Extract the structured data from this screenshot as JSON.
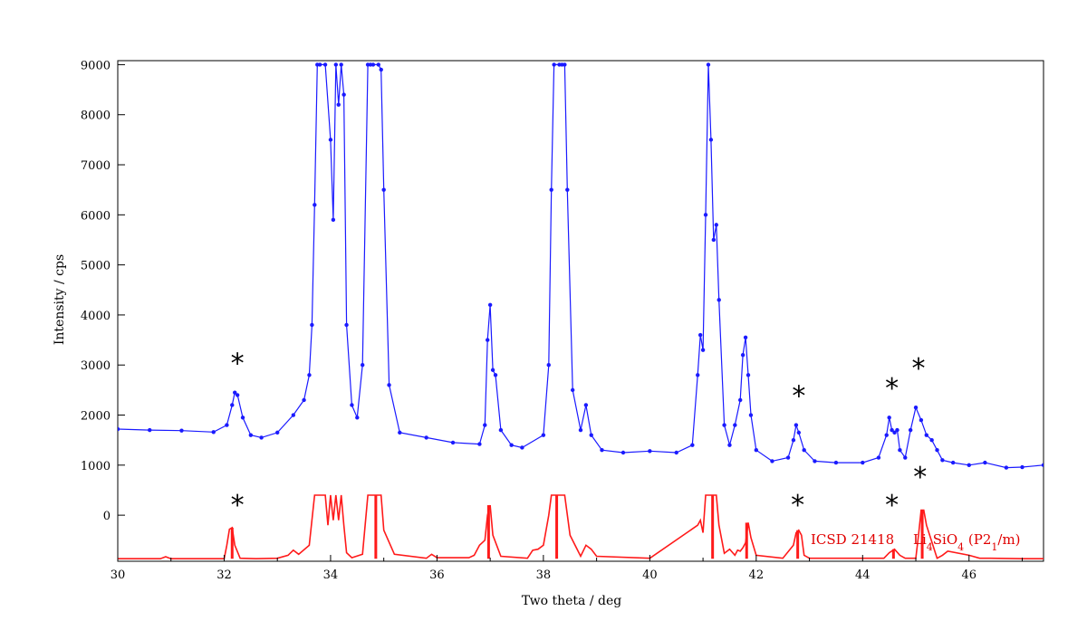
{
  "chart_data": {
    "type": "line",
    "xlabel": "Two theta / deg",
    "ylabel": "Intensity / cps",
    "xlim": [
      30,
      47.4
    ],
    "ylim": [
      -920,
      9080
    ],
    "x_ticks": [
      30,
      32,
      34,
      36,
      38,
      40,
      42,
      44,
      46
    ],
    "y_ticks": [
      0,
      1000,
      2000,
      3000,
      4000,
      5000,
      6000,
      7000,
      8000,
      9000
    ],
    "grid": false,
    "series": [
      {
        "color": "#1a1aff",
        "markers": true,
        "x": [
          30.0,
          30.6,
          31.2,
          31.8,
          32.05,
          32.15,
          32.2,
          32.25,
          32.35,
          32.5,
          32.7,
          33.0,
          33.3,
          33.5,
          33.6,
          33.65,
          33.7,
          33.75,
          33.8,
          33.9,
          34.0,
          34.05,
          34.1,
          34.15,
          34.2,
          34.25,
          34.3,
          34.4,
          34.5,
          34.6,
          34.7,
          34.75,
          34.8,
          34.9,
          34.95,
          35.0,
          35.1,
          35.3,
          35.8,
          36.3,
          36.8,
          36.9,
          36.95,
          37.0,
          37.05,
          37.1,
          37.2,
          37.4,
          37.6,
          38.0,
          38.1,
          38.15,
          38.2,
          38.3,
          38.35,
          38.4,
          38.45,
          38.55,
          38.7,
          38.8,
          38.9,
          39.1,
          39.5,
          40.0,
          40.5,
          40.8,
          40.9,
          40.95,
          41.0,
          41.05,
          41.1,
          41.15,
          41.2,
          41.25,
          41.3,
          41.4,
          41.5,
          41.6,
          41.7,
          41.75,
          41.8,
          41.85,
          41.9,
          42.0,
          42.3,
          42.6,
          42.7,
          42.75,
          42.8,
          42.9,
          43.1,
          43.5,
          44.0,
          44.3,
          44.45,
          44.5,
          44.55,
          44.6,
          44.65,
          44.7,
          44.8,
          44.9,
          45.0,
          45.1,
          45.2,
          45.3,
          45.4,
          45.5,
          45.7,
          46.0,
          46.3,
          46.7,
          47.0,
          47.4
        ],
        "y": [
          1720,
          1700,
          1690,
          1660,
          1800,
          2200,
          2450,
          2400,
          1950,
          1600,
          1550,
          1650,
          2000,
          2300,
          2800,
          3800,
          6200,
          9000,
          9000,
          9000,
          7500,
          5900,
          9000,
          8200,
          9000,
          8400,
          3800,
          2200,
          1950,
          3000,
          9000,
          9000,
          9000,
          9000,
          8900,
          6500,
          2600,
          1650,
          1550,
          1450,
          1420,
          1800,
          3500,
          4200,
          2900,
          2800,
          1700,
          1400,
          1350,
          1600,
          3000,
          6500,
          9000,
          9000,
          9000,
          9000,
          6500,
          2500,
          1700,
          2200,
          1600,
          1300,
          1250,
          1280,
          1250,
          1400,
          2800,
          3600,
          3300,
          6000,
          9000,
          7500,
          5500,
          5800,
          4300,
          1800,
          1400,
          1800,
          2300,
          3200,
          3550,
          2800,
          2000,
          1300,
          1080,
          1150,
          1500,
          1800,
          1650,
          1300,
          1080,
          1050,
          1050,
          1150,
          1600,
          1950,
          1700,
          1650,
          1700,
          1300,
          1150,
          1700,
          2150,
          1900,
          1600,
          1500,
          1300,
          1100,
          1050,
          1000,
          1050,
          950,
          960,
          1000
        ]
      },
      {
        "color": "#ff1a1a",
        "markers": false,
        "x": [
          30.0,
          30.8,
          30.9,
          31.0,
          31.5,
          32.0,
          32.05,
          32.1,
          32.15,
          32.2,
          32.3,
          32.6,
          33.0,
          33.2,
          33.3,
          33.4,
          33.6,
          33.7,
          33.8,
          33.9,
          33.95,
          34.0,
          34.05,
          34.1,
          34.15,
          34.2,
          34.25,
          34.3,
          34.4,
          34.6,
          34.7,
          34.75,
          34.8,
          34.9,
          34.95,
          35.0,
          35.2,
          35.8,
          35.9,
          36.0,
          36.6,
          36.7,
          36.8,
          36.9,
          36.95,
          37.0,
          37.05,
          37.2,
          37.7,
          37.8,
          37.9,
          38.0,
          38.1,
          38.15,
          38.2,
          38.3,
          38.35,
          38.4,
          38.5,
          38.7,
          38.8,
          38.9,
          39.0,
          40.0,
          40.9,
          40.95,
          41.0,
          41.05,
          41.1,
          41.15,
          41.2,
          41.25,
          41.3,
          41.4,
          41.5,
          41.6,
          41.65,
          41.7,
          41.75,
          41.8,
          41.85,
          41.9,
          42.0,
          42.5,
          42.7,
          42.75,
          42.8,
          42.85,
          42.9,
          43.0,
          44.4,
          44.5,
          44.6,
          44.7,
          44.8,
          45.0,
          45.05,
          45.1,
          45.15,
          45.2,
          45.4,
          45.5,
          45.6,
          46.0,
          46.2,
          46.4,
          47.0,
          47.4
        ],
        "y": [
          -870,
          -870,
          -830,
          -870,
          -870,
          -870,
          -600,
          -280,
          -250,
          -600,
          -860,
          -870,
          -860,
          -800,
          -700,
          -780,
          -600,
          400,
          400,
          400,
          -200,
          400,
          -100,
          400,
          -100,
          400,
          -200,
          -750,
          -850,
          -780,
          400,
          400,
          400,
          400,
          400,
          -300,
          -780,
          -860,
          -780,
          -850,
          -850,
          -800,
          -600,
          -500,
          0,
          200,
          -400,
          -820,
          -860,
          -700,
          -680,
          -600,
          0,
          400,
          400,
          400,
          400,
          400,
          -400,
          -820,
          -600,
          -680,
          -820,
          -860,
          -200,
          -100,
          -350,
          400,
          400,
          400,
          400,
          400,
          -200,
          -760,
          -680,
          -800,
          -700,
          -720,
          -650,
          -550,
          -150,
          -450,
          -800,
          -860,
          -600,
          -350,
          -300,
          -400,
          -800,
          -860,
          -860,
          -750,
          -680,
          -800,
          -860,
          -860,
          -400,
          100,
          100,
          -200,
          -860,
          -800,
          -720,
          -800,
          -860,
          -860,
          -870,
          -870
        ]
      }
    ],
    "reference_bars": {
      "color": "#ff1a1a",
      "x": [
        32.15,
        34.85,
        36.97,
        38.25,
        41.18,
        41.82,
        42.78,
        44.58,
        45.12
      ],
      "y": [
        -250,
        400,
        200,
        400,
        400,
        -150,
        -300,
        -680,
        100
      ]
    },
    "markers": [
      {
        "symbol": "*",
        "x": 32.25,
        "y": 2850
      },
      {
        "symbol": "*",
        "x": 42.8,
        "y": 2200
      },
      {
        "symbol": "*",
        "x": 44.55,
        "y": 2350
      },
      {
        "symbol": "*",
        "x": 45.05,
        "y": 2750
      },
      {
        "symbol": "*",
        "x": 32.25,
        "y": 20
      },
      {
        "symbol": "*",
        "x": 42.78,
        "y": 20
      },
      {
        "symbol": "*",
        "x": 44.55,
        "y": 20
      },
      {
        "symbol": "*",
        "x": 45.08,
        "y": 580
      }
    ],
    "annotations": [
      {
        "text": "ICSD 21418",
        "color": "#e00000"
      },
      {
        "text": "Li4SiO4 (P21/m)",
        "color": "#e00000"
      }
    ]
  }
}
